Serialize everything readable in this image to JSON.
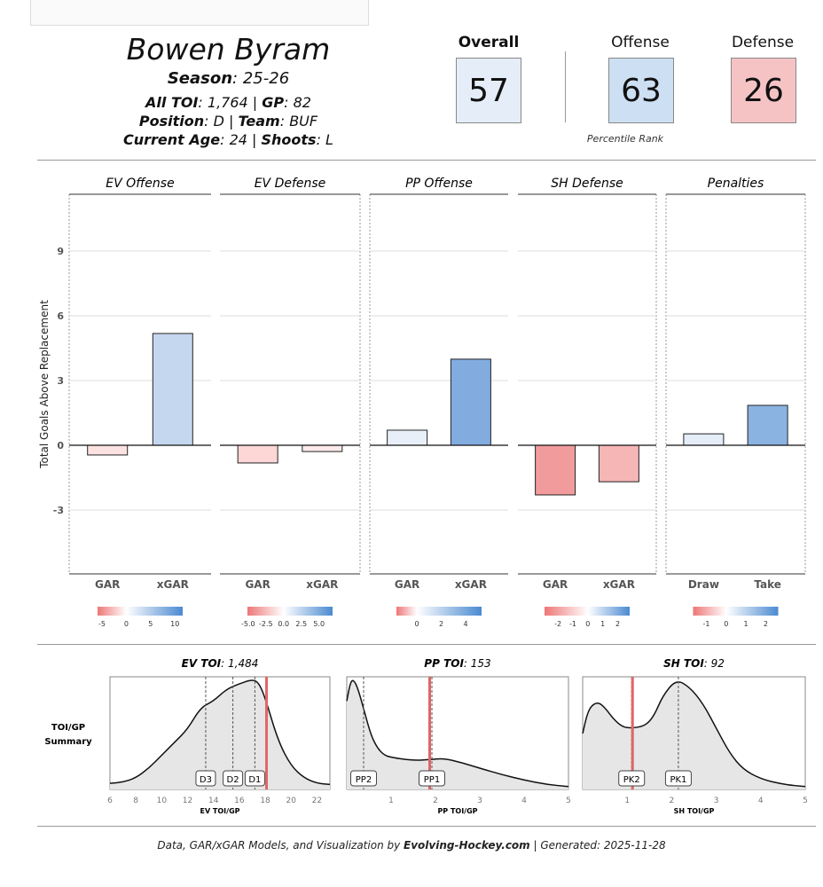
{
  "player": {
    "name": "Bowen Byram",
    "season_label": "Season",
    "season": "25-26",
    "toi_label": "All TOI",
    "toi": "1,764",
    "gp_label": "GP",
    "gp": "82",
    "position_label": "Position",
    "position": "D",
    "team_label": "Team",
    "team": "BUF",
    "age_label": "Current Age",
    "age": "24",
    "shoots_label": "Shoots",
    "shoots": "L"
  },
  "scores": {
    "overall_label": "Overall",
    "overall": "57",
    "offense_label": "Offense",
    "offense": "63",
    "defense_label": "Defense",
    "defense": "26",
    "percentile_label": "Percentile Rank",
    "colors": {
      "overall": "#e5edf8",
      "offense": "#cddff2",
      "defense": "#f6c3c5"
    }
  },
  "chart_data": [
    {
      "type": "bar",
      "ylabel": "Total Goals Above Replacement",
      "ylim": [
        -6,
        11.6
      ],
      "yticks": [
        -3,
        0,
        3,
        6,
        9
      ],
      "grid": true,
      "panels": [
        {
          "title": "EV Offense",
          "categories": [
            "GAR",
            "xGAR"
          ],
          "values": [
            -0.45,
            5.18
          ],
          "colors": [
            "#fde2e2",
            "#c5d7ef"
          ],
          "colorbar": {
            "range": [
              -5.9,
              11.6
            ],
            "ticks": [
              "-5",
              "0",
              "5",
              "10"
            ],
            "tick_values": [
              -5,
              0,
              5,
              10
            ]
          }
        },
        {
          "title": "EV Defense",
          "categories": [
            "GAR",
            "xGAR"
          ],
          "values": [
            -0.82,
            -0.29
          ],
          "colors": [
            "#fdd6d6",
            "#fdeaea"
          ],
          "colorbar": {
            "range": [
              -5.1,
              6.9
            ],
            "ticks": [
              "-5.0",
              "-2.5",
              "0.0",
              "2.5",
              "5.0"
            ],
            "tick_values": [
              -5,
              -2.5,
              0,
              2.5,
              5
            ]
          }
        },
        {
          "title": "PP Offense",
          "categories": [
            "GAR",
            "xGAR"
          ],
          "values": [
            0.7,
            3.99
          ],
          "colors": [
            "#e8eff9",
            "#82ace0"
          ],
          "colorbar": {
            "range": [
              -1.67,
              5.3
            ],
            "ticks": [
              "0",
              "2",
              "4"
            ],
            "tick_values": [
              0,
              2,
              4
            ]
          }
        },
        {
          "title": "SH Defense",
          "categories": [
            "GAR",
            "xGAR"
          ],
          "values": [
            -2.3,
            -1.69
          ],
          "colors": [
            "#f29b9d",
            "#f7b6b6"
          ],
          "colorbar": {
            "range": [
              -2.9,
              2.8
            ],
            "ticks": [
              "-2",
              "-1",
              "0",
              "1",
              "2"
            ],
            "tick_values": [
              -2,
              -1,
              0,
              1,
              2
            ]
          }
        },
        {
          "title": "Penalties",
          "categories": [
            "Draw",
            "Take"
          ],
          "values": [
            0.53,
            1.85
          ],
          "colors": [
            "#e4edf8",
            "#8ab3e2"
          ],
          "colorbar": {
            "range": [
              -1.67,
              2.63
            ],
            "ticks": [
              "-1",
              "0",
              "1",
              "2"
            ],
            "tick_values": [
              -1,
              0,
              1,
              2
            ]
          }
        }
      ]
    },
    {
      "type": "area",
      "row_label": [
        "TOI/GP",
        "Summary"
      ],
      "player_line_color": "#e06666",
      "plots": [
        {
          "title_bold": "EV TOI",
          "title_value": "1,484",
          "xlabel": "EV TOI/GP",
          "xlim": [
            6,
            23
          ],
          "xticks": [
            6,
            8,
            10,
            12,
            14,
            16,
            18,
            20,
            22
          ],
          "x": [
            6,
            7,
            8,
            9,
            10,
            11,
            12,
            13,
            14,
            15,
            16,
            17,
            17.5,
            18,
            19,
            20,
            21,
            22,
            23
          ],
          "density": [
            0.04,
            0.05,
            0.09,
            0.18,
            0.3,
            0.42,
            0.54,
            0.74,
            0.8,
            0.91,
            0.96,
            1.0,
            0.97,
            0.83,
            0.43,
            0.2,
            0.09,
            0.04,
            0.03
          ],
          "markers": [
            {
              "label": "D3",
              "x": 13.4
            },
            {
              "label": "D2",
              "x": 15.5
            },
            {
              "label": "D1",
              "x": 17.2
            }
          ],
          "player_value": 18.1
        },
        {
          "title_bold": "PP TOI",
          "title_value": "153",
          "xlabel": "PP TOI/GP",
          "xlim": [
            0,
            5
          ],
          "xticks": [
            1,
            2,
            3,
            4,
            5
          ],
          "x": [
            0,
            0.08,
            0.15,
            0.25,
            0.4,
            0.55,
            0.7,
            0.85,
            1,
            1.5,
            1.9,
            2.2,
            2.6,
            3,
            3.5,
            4,
            4.5,
            5
          ],
          "density": [
            0.8,
            0.97,
            1.0,
            0.92,
            0.7,
            0.48,
            0.36,
            0.3,
            0.28,
            0.25,
            0.26,
            0.27,
            0.23,
            0.18,
            0.12,
            0.07,
            0.03,
            0.01
          ],
          "markers": [
            {
              "label": "PP2",
              "x": 0.38
            },
            {
              "label": "PP1",
              "x": 1.92
            }
          ],
          "player_value": 1.87
        },
        {
          "title_bold": "SH TOI",
          "title_value": "92",
          "xlabel": "SH TOI/GP",
          "xlim": [
            0,
            5
          ],
          "xticks": [
            1,
            2,
            3,
            4,
            5
          ],
          "x": [
            0,
            0.1,
            0.2,
            0.35,
            0.5,
            0.7,
            0.9,
            1.1,
            1.4,
            1.6,
            1.8,
            2.1,
            2.4,
            2.7,
            3,
            3.3,
            3.6,
            4,
            4.5,
            5
          ],
          "density": [
            0.5,
            0.68,
            0.76,
            0.79,
            0.74,
            0.63,
            0.56,
            0.55,
            0.57,
            0.66,
            0.85,
            1.0,
            0.93,
            0.78,
            0.55,
            0.32,
            0.17,
            0.08,
            0.03,
            0.01
          ],
          "markers": [
            {
              "label": "PK2",
              "x": 1.1
            },
            {
              "label": "PK1",
              "x": 2.15
            }
          ],
          "player_value": 1.12
        }
      ]
    }
  ],
  "footer": {
    "prefix": "Data, GAR/xGAR Models, and Visualization by ",
    "brand": "Evolving-Hockey.com",
    "suffix": " | Generated: 2025-11-28"
  }
}
